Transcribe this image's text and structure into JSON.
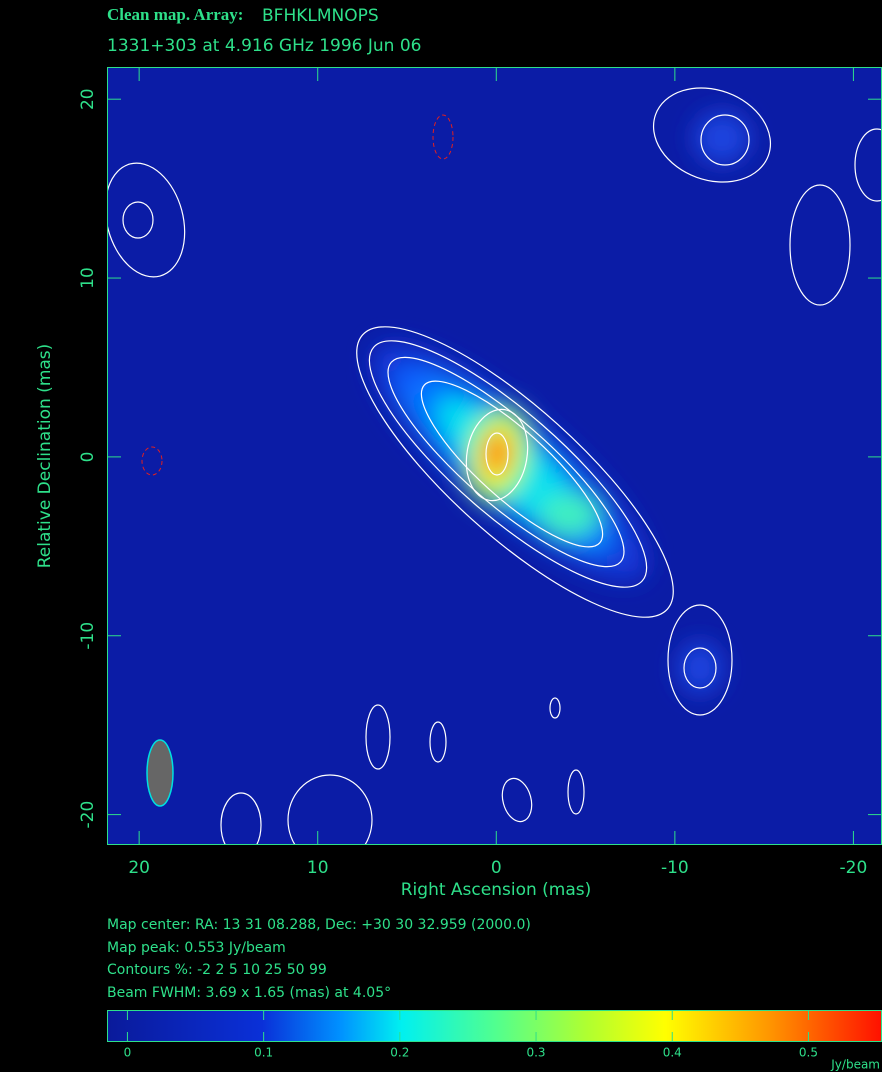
{
  "chart_data": {
    "type": "map",
    "title": "Clean map.  Array:",
    "array": "BFHKLMNOPS",
    "subtitle": "1331+303 at 4.916 GHz 1996 Jun 06",
    "x_label": "Right Ascension  (mas)",
    "y_label": "Relative Declination  (mas)",
    "xlim": [
      21.8,
      -21.6
    ],
    "xticks": [
      20,
      10,
      0,
      -10,
      -20
    ],
    "ylim": [
      -21.7,
      21.8
    ],
    "yticks": [
      20,
      10,
      0,
      -10,
      -20
    ],
    "info": [
      "Map center:  RA: 13 31 08.288,  Dec: +30 30 32.959 (2000.0)",
      "Map peak: 0.553 Jy/beam",
      "Contours %: -2 2 5 10 25 50 99",
      "Beam FWHM: 3.69 x 1.65 (mas) at 4.05°"
    ],
    "colorbar": {
      "label": "Jy/beam",
      "lim": [
        -0.015,
        0.554
      ],
      "ticks": [
        0,
        0.1,
        0.2,
        0.3,
        0.4,
        0.5
      ]
    }
  }
}
